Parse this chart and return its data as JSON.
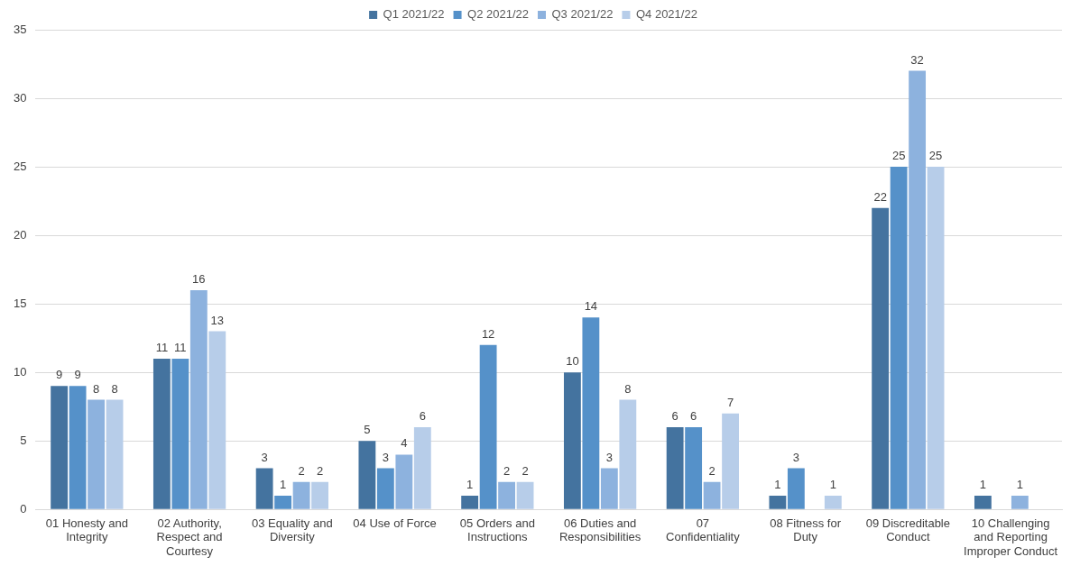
{
  "chart_data": {
    "type": "bar",
    "categories": [
      "01 Honesty and Integrity",
      "02 Authority, Respect and Courtesy",
      "03 Equality and Diversity",
      "04 Use of Force",
      "05 Orders and Instructions",
      "06 Duties and Responsibilities",
      "07 Confidentiality",
      "08 Fitness for Duty",
      "09 Discreditable Conduct",
      "10 Challenging and Reporting Improper Conduct"
    ],
    "series": [
      {
        "name": "Q1 2021/22",
        "color": "#44739f",
        "values": [
          9,
          11,
          3,
          5,
          1,
          10,
          6,
          1,
          22,
          1
        ]
      },
      {
        "name": "Q2 2021/22",
        "color": "#5591c9",
        "values": [
          9,
          11,
          1,
          3,
          12,
          14,
          6,
          3,
          25,
          null
        ]
      },
      {
        "name": "Q3 2021/22",
        "color": "#8db2de",
        "values": [
          8,
          16,
          2,
          4,
          2,
          3,
          2,
          null,
          32,
          1
        ]
      },
      {
        "name": "Q4 2021/22",
        "color": "#b7cde9",
        "values": [
          8,
          13,
          2,
          6,
          2,
          8,
          7,
          1,
          25,
          null
        ]
      }
    ],
    "ylim": [
      0,
      35
    ],
    "yticks": [
      0,
      5,
      10,
      15,
      20,
      25,
      30,
      35
    ],
    "grid": "y",
    "legend": "top",
    "data_labels": true
  }
}
